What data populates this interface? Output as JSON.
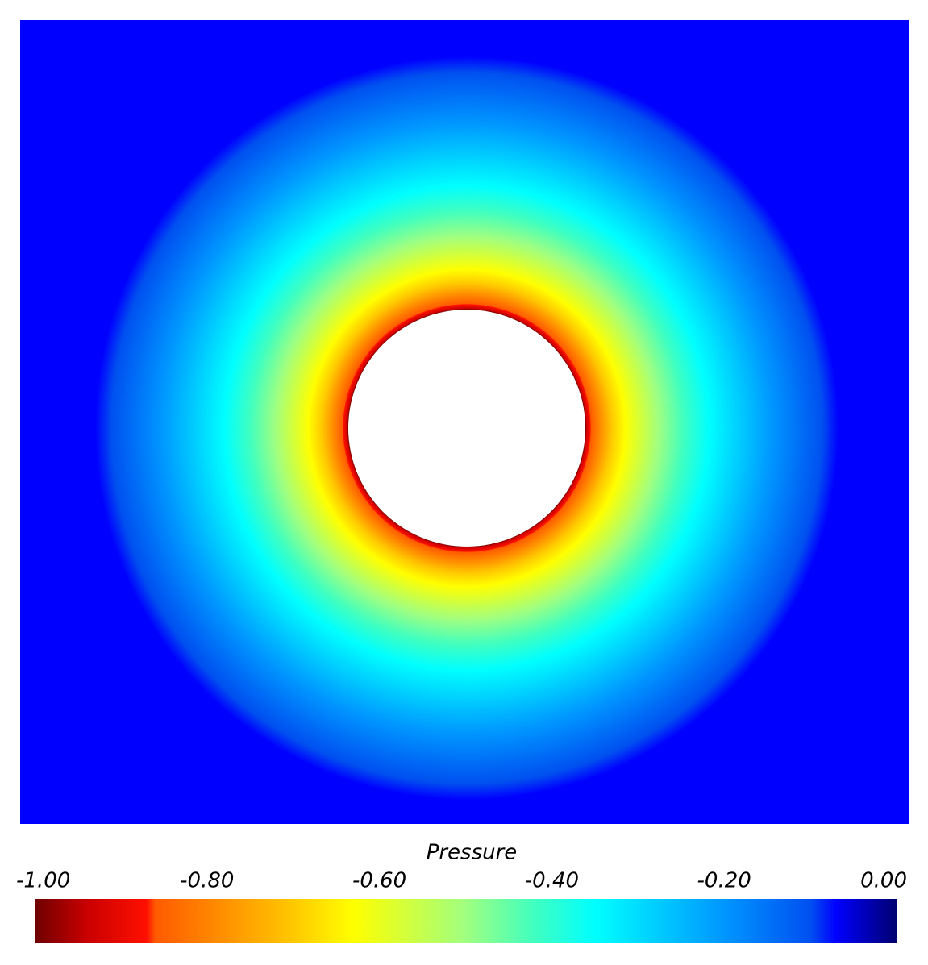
{
  "chart_data": {
    "type": "contour",
    "colorbar": {
      "title": "Pressure",
      "lim": [
        -1,
        0
      ],
      "ticks": [
        {
          "value": -1,
          "label": "-1.00"
        },
        {
          "value": -0.8,
          "label": "-0.80"
        },
        {
          "value": -0.6,
          "label": "-0.60"
        },
        {
          "value": -0.4,
          "label": "-0.40"
        },
        {
          "value": -0.2,
          "label": "-0.20"
        },
        {
          "value": 0,
          "label": "0.00"
        }
      ]
    },
    "colormap": [
      {
        "value": -1,
        "color": "#6e0000"
      },
      {
        "value": -0.94,
        "color": "#c80000"
      },
      {
        "value": -0.87,
        "color": "#ff1000"
      },
      {
        "value": -0.86,
        "color": "#ff5a00"
      },
      {
        "value": -0.7,
        "color": "#ffc800"
      },
      {
        "value": -0.63,
        "color": "#ffff00"
      },
      {
        "value": -0.5,
        "color": "#a0ff80"
      },
      {
        "value": -0.42,
        "color": "#40ffc0"
      },
      {
        "value": -0.35,
        "color": "#00ffff"
      },
      {
        "value": -0.2,
        "color": "#0096ff"
      },
      {
        "value": -0.1,
        "color": "#0050f0"
      },
      {
        "value": -0.07,
        "color": "#0000ff"
      },
      {
        "value": 0,
        "color": "#000070"
      }
    ]
  }
}
